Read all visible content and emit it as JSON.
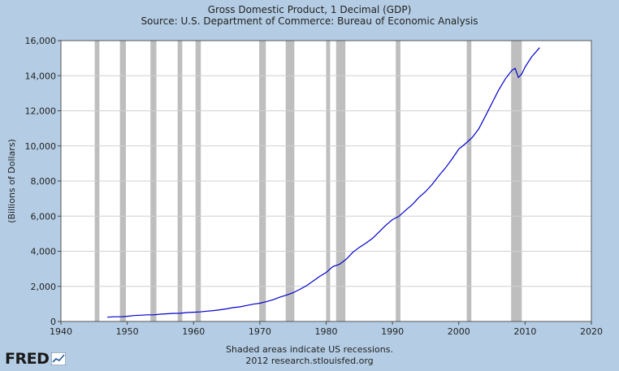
{
  "header": {
    "title": "Gross Domestic Product, 1 Decimal (GDP)",
    "subtitle": "Source: U.S. Department of Commerce: Bureau of Economic Analysis"
  },
  "footer": {
    "note": "Shaded areas indicate US recessions.",
    "credit": "2012 research.stlouisfed.org",
    "logo": "FRED"
  },
  "colors": {
    "background": "#b4cde4",
    "plot": "#ffffff",
    "line": "#0000cc",
    "recession": "#bebebe",
    "grid": "#d0d0d0"
  },
  "chart_data": {
    "type": "line",
    "title": "Gross Domestic Product, 1 Decimal (GDP)",
    "ylabel": "(Billions of Dollars)",
    "xlim": [
      1940,
      2020
    ],
    "ylim": [
      0,
      16000
    ],
    "xticks": [
      1940,
      1950,
      1960,
      1970,
      1980,
      1990,
      2000,
      2010,
      2020
    ],
    "yticks": [
      0,
      2000,
      4000,
      6000,
      8000,
      10000,
      12000,
      14000,
      16000
    ],
    "ytick_labels": [
      "0",
      "2,000",
      "4,000",
      "6,000",
      "8,000",
      "10,000",
      "12,000",
      "14,000",
      "16,000"
    ],
    "grid": true,
    "recessions": [
      [
        1945.1,
        1945.8
      ],
      [
        1948.9,
        1949.8
      ],
      [
        1953.5,
        1954.4
      ],
      [
        1957.6,
        1958.3
      ],
      [
        1960.3,
        1961.1
      ],
      [
        1969.9,
        1970.9
      ],
      [
        1973.9,
        1975.2
      ],
      [
        1980.0,
        1980.6
      ],
      [
        1981.5,
        1982.9
      ],
      [
        1990.5,
        1991.2
      ],
      [
        2001.2,
        2001.9
      ],
      [
        2007.9,
        2009.5
      ]
    ],
    "series": [
      {
        "x": [
          1947,
          1948,
          1949,
          1950,
          1951,
          1952,
          1953,
          1954,
          1955,
          1956,
          1957,
          1958,
          1959,
          1960,
          1961,
          1962,
          1963,
          1964,
          1965,
          1966,
          1967,
          1968,
          1969,
          1970,
          1971,
          1972,
          1973,
          1974,
          1975,
          1976,
          1977,
          1978,
          1979,
          1980,
          1981,
          1982,
          1983,
          1984,
          1985,
          1986,
          1987,
          1988,
          1989,
          1990,
          1991,
          1992,
          1993,
          1994,
          1995,
          1996,
          1997,
          1998,
          1999,
          2000,
          2001,
          2002,
          2003,
          2004,
          2005,
          2006,
          2007,
          2008.0,
          2008.5,
          2009.0,
          2009.5,
          2010,
          2011,
          2012.2
        ],
        "y": [
          244,
          270,
          268,
          294,
          339,
          358,
          380,
          381,
          415,
          438,
          462,
          467,
          507,
          527,
          545,
          586,
          618,
          664,
          720,
          790,
          833,
          911,
          985,
          1039,
          1127,
          1238,
          1382,
          1500,
          1638,
          1825,
          2031,
          2295,
          2563,
          2789,
          3128,
          3255,
          3537,
          3933,
          4220,
          4463,
          4740,
          5104,
          5484,
          5803,
          5996,
          6338,
          6657,
          7072,
          7398,
          7817,
          8304,
          8747,
          9268,
          9817,
          10128,
          10470,
          10961,
          11686,
          12434,
          13171,
          13807,
          14300,
          14420,
          13900,
          14100,
          14498,
          15076,
          15600
        ]
      }
    ]
  }
}
